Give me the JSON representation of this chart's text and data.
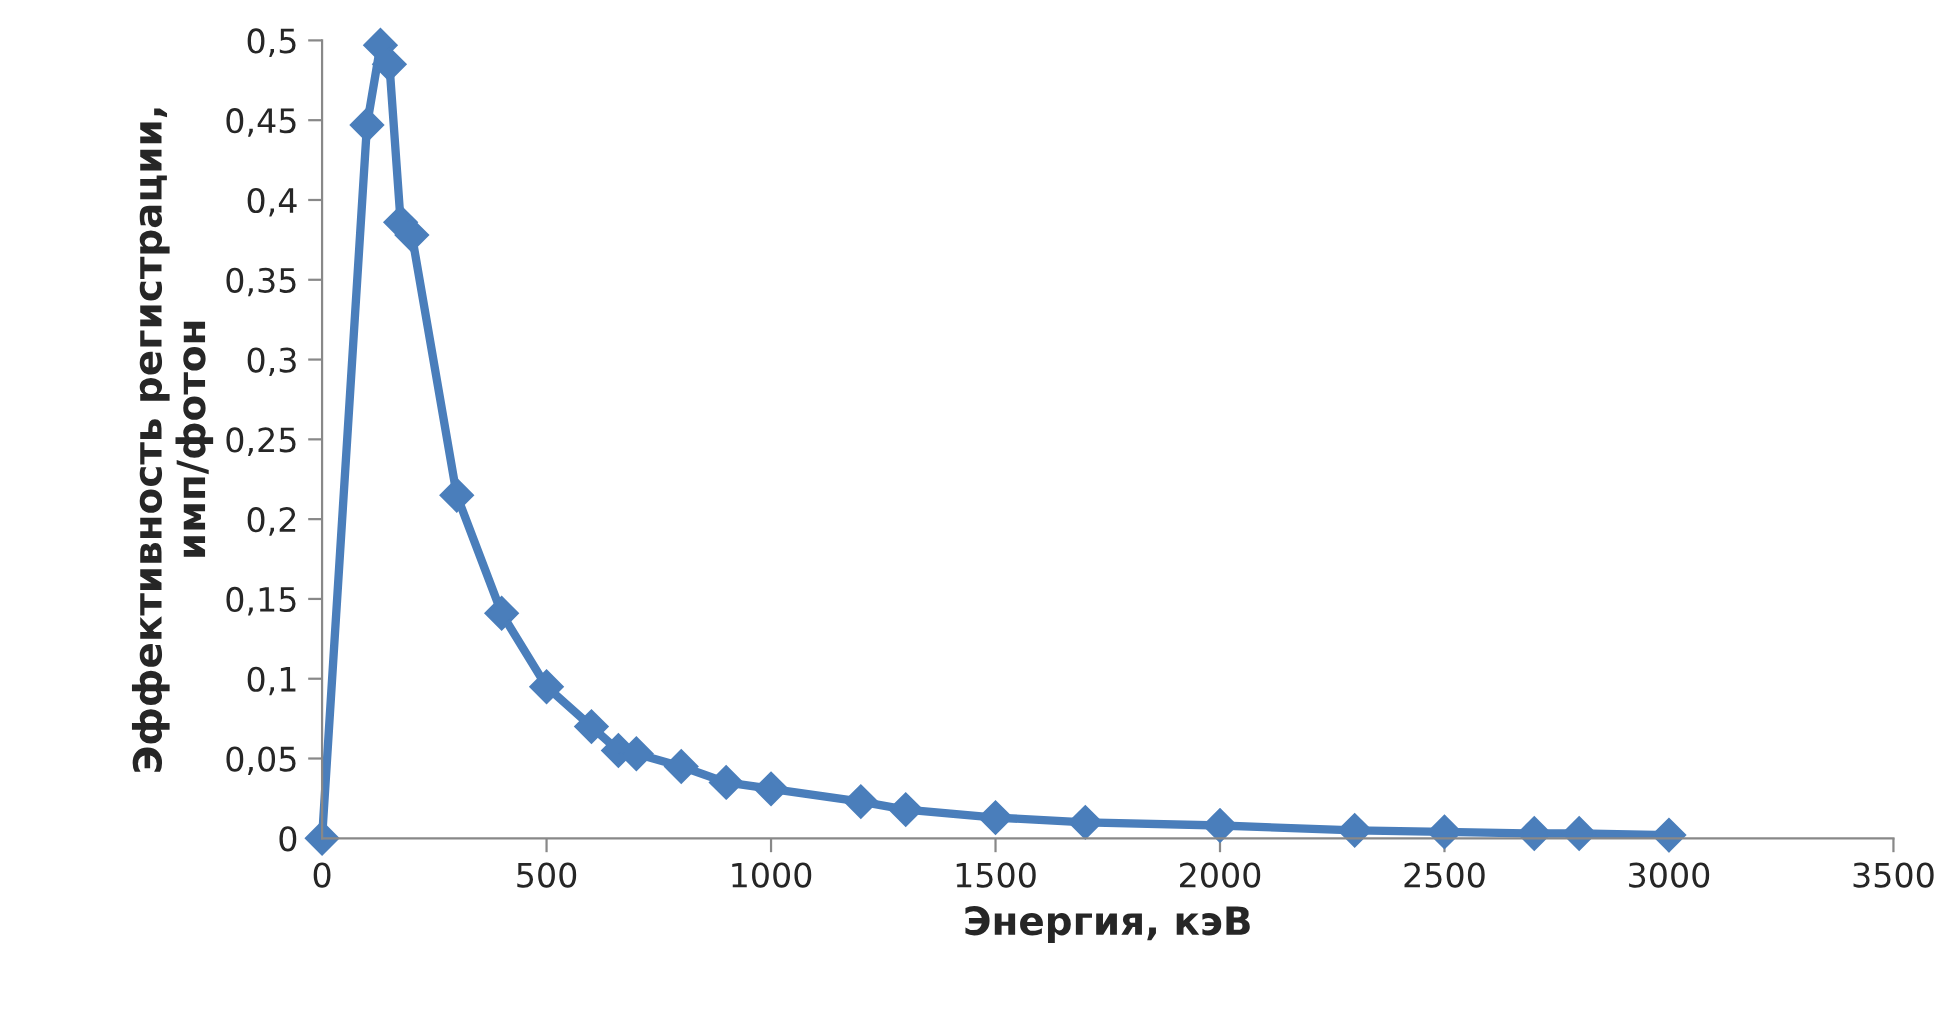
{
  "chart_data": {
    "type": "line",
    "xlabel": "Энергия, кэВ",
    "ylabel": "Эффективность регистрации,\nимп/фотон",
    "x": [
      0,
      100,
      130,
      150,
      175,
      200,
      300,
      400,
      500,
      600,
      660,
      700,
      800,
      900,
      1000,
      1200,
      1300,
      1500,
      1700,
      2000,
      2300,
      2500,
      2700,
      2800,
      3000
    ],
    "series": [
      {
        "color": "#4a7ebb",
        "values": [
          0,
          0.447,
          0.497,
          0.485,
          0.386,
          0.378,
          0.215,
          0.141,
          0.095,
          0.07,
          0.055,
          0.053,
          0.045,
          0.035,
          0.031,
          0.023,
          0.018,
          0.013,
          0.01,
          0.008,
          0.005,
          0.004,
          0.003,
          0.003,
          0.002
        ]
      }
    ],
    "xlim": [
      0,
      3500
    ],
    "xticks": [
      0,
      500,
      1000,
      1500,
      2000,
      2500,
      3000,
      3500
    ],
    "ylim": [
      0,
      0.5
    ],
    "yticks": [
      {
        "value": 0,
        "label": "0"
      },
      {
        "value": 0.05,
        "label": "0,05"
      },
      {
        "value": 0.1,
        "label": "0,1"
      },
      {
        "value": 0.15,
        "label": "0,15"
      },
      {
        "value": 0.2,
        "label": "0,2"
      },
      {
        "value": 0.25,
        "label": "0,25"
      },
      {
        "value": 0.3,
        "label": "0,3"
      },
      {
        "value": 0.35,
        "label": "0,35"
      },
      {
        "value": 0.4,
        "label": "0,4"
      },
      {
        "value": 0.45,
        "label": "0,45"
      },
      {
        "value": 0.5,
        "label": "0,5"
      }
    ],
    "marker": "diamond",
    "line_style": "solid",
    "grid": false,
    "legend": false
  }
}
